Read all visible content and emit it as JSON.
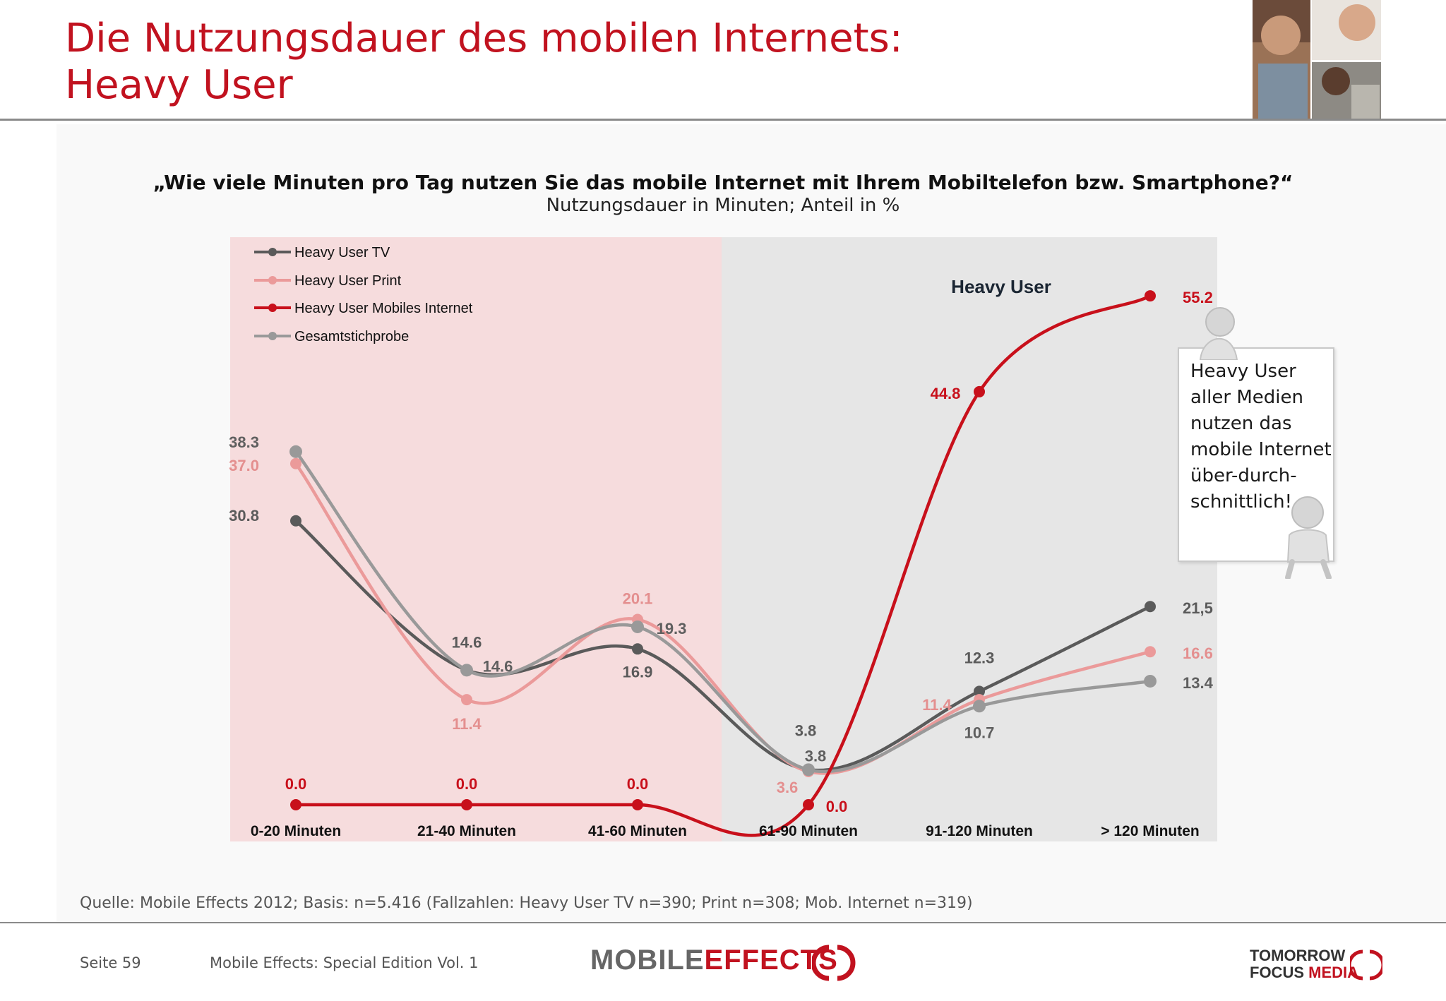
{
  "page": {
    "title_line1": "Die Nutzungsdauer des mobilen Internets:",
    "title_line2": "Heavy User",
    "question": "„Wie viele Minuten pro Tag nutzen Sie das mobile Internet mit Ihrem Mobiltelefon bzw. Smartphone?“",
    "subtitle": "Nutzungsdauer in Minuten; Anteil in %",
    "callout": "Heavy User aller Medien nutzen das mobile Internet über-durch-schnittlich!",
    "source": "Quelle: Mobile Effects 2012; Basis: n=5.416 (Fallzahlen: Heavy User TV n=390; Print n=308; Mob. Internet n=319)",
    "page_number": "Seite 59",
    "edition": "Mobile Effects: Special Edition Vol. 1",
    "logo_left_part1": "MOBILE",
    "logo_left_part2": "EFFECTS",
    "logo_right_line1": "TOMORROW",
    "logo_right_line2_part1": "FOCUS",
    "logo_right_line2_part2": "MEDIA"
  },
  "colors": {
    "title": "#c1121f",
    "panel_left": "#f6dcdd",
    "panel_right": "#e6e6e6",
    "tv": "#5a5a5a",
    "print": "#eb9a9a",
    "mobile": "#c8101b",
    "total": "#999999"
  },
  "chart_data": {
    "type": "line",
    "categories": [
      "0-20 Minuten",
      "21-40 Minuten",
      "41-60 Minuten",
      "61-90 Minuten",
      "91-120 Minuten",
      "> 120 Minuten"
    ],
    "region_label": "Heavy User",
    "legend_position": "top-left",
    "grid": false,
    "series": [
      {
        "name": "Heavy User TV",
        "color": "#5a5a5a",
        "values": [
          30.8,
          14.6,
          16.9,
          3.8,
          12.3,
          21.5
        ],
        "labels": [
          "30.8",
          "14.6",
          "16.9",
          "3.8",
          "12.3",
          "21,5"
        ]
      },
      {
        "name": "Heavy User Print",
        "color": "#eb9a9a",
        "values": [
          37.0,
          11.4,
          20.1,
          3.6,
          11.4,
          16.6
        ],
        "labels": [
          "37.0",
          "11.4",
          "20.1",
          "3.6",
          "11.4",
          "16.6"
        ]
      },
      {
        "name": "Heavy User Mobiles Internet",
        "color": "#c8101b",
        "values": [
          0.0,
          0.0,
          0.0,
          0.0,
          44.8,
          55.2
        ],
        "labels": [
          "0.0",
          "0.0",
          "0.0",
          "0.0",
          "44.8",
          "55.2"
        ]
      },
      {
        "name": "Gesamtstichprobe",
        "color": "#999999",
        "values": [
          38.3,
          14.6,
          19.3,
          3.8,
          10.7,
          13.4
        ],
        "labels": [
          "38.3",
          "14.6",
          "19.3",
          "3.8",
          "10.7",
          "13.4"
        ]
      }
    ]
  }
}
